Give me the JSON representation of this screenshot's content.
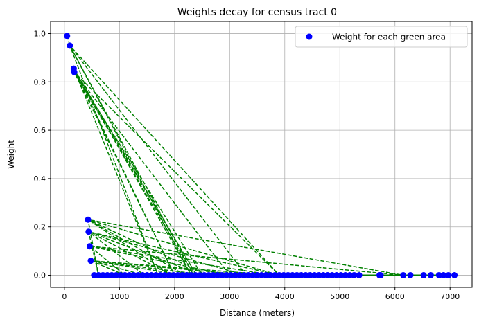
{
  "chart_data": {
    "type": "scatter",
    "title": "Weights decay for census tract 0",
    "xlabel": "Distance (meters)",
    "ylabel": "Weight",
    "xlim": [
      -250,
      7400
    ],
    "ylim": [
      -0.05,
      1.05
    ],
    "xticks": [
      0,
      1000,
      2000,
      3000,
      4000,
      5000,
      6000,
      7000
    ],
    "yticks": [
      0.0,
      0.2,
      0.4,
      0.6,
      0.8,
      1.0
    ],
    "xtick_labels": [
      "0",
      "1000",
      "2000",
      "3000",
      "4000",
      "5000",
      "6000",
      "7000"
    ],
    "ytick_labels": [
      "0.0",
      "0.2",
      "0.4",
      "0.6",
      "0.8",
      "1.0"
    ],
    "grid": true,
    "legend": {
      "placement": "top-right",
      "entries": [
        "Weight for each green area"
      ]
    },
    "colors": {
      "points": "#0000ff",
      "line": "#008000",
      "grid": "#b0b0b0"
    },
    "series": [
      {
        "name": "Weight for each green area",
        "style": "scatter",
        "points": [
          [
            50,
            0.99
          ],
          [
            100,
            0.95
          ],
          [
            170,
            0.855
          ],
          [
            180,
            0.84
          ],
          [
            430,
            0.23
          ],
          [
            440,
            0.18
          ],
          [
            460,
            0.12
          ],
          [
            480,
            0.06
          ],
          [
            540,
            0.0
          ],
          [
            620,
            0.0
          ],
          [
            700,
            0.0
          ],
          [
            780,
            0.0
          ],
          [
            860,
            0.0
          ],
          [
            940,
            0.0
          ],
          [
            1020,
            0.0
          ],
          [
            1100,
            0.0
          ],
          [
            1180,
            0.0
          ],
          [
            1260,
            0.0
          ],
          [
            1340,
            0.0
          ],
          [
            1420,
            0.0
          ],
          [
            1500,
            0.0
          ],
          [
            1580,
            0.0
          ],
          [
            1660,
            0.0
          ],
          [
            1740,
            0.0
          ],
          [
            1820,
            0.0
          ],
          [
            1900,
            0.0
          ],
          [
            1980,
            0.0
          ],
          [
            2060,
            0.0
          ],
          [
            2140,
            0.0
          ],
          [
            2220,
            0.0
          ],
          [
            2300,
            0.0
          ],
          [
            2380,
            0.0
          ],
          [
            2460,
            0.0
          ],
          [
            2540,
            0.0
          ],
          [
            2620,
            0.0
          ],
          [
            2700,
            0.0
          ],
          [
            2780,
            0.0
          ],
          [
            2860,
            0.0
          ],
          [
            2940,
            0.0
          ],
          [
            3020,
            0.0
          ],
          [
            3100,
            0.0
          ],
          [
            3180,
            0.0
          ],
          [
            3260,
            0.0
          ],
          [
            3340,
            0.0
          ],
          [
            3420,
            0.0
          ],
          [
            3500,
            0.0
          ],
          [
            3580,
            0.0
          ],
          [
            3660,
            0.0
          ],
          [
            3740,
            0.0
          ],
          [
            3820,
            0.0
          ],
          [
            3900,
            0.0
          ],
          [
            3980,
            0.0
          ],
          [
            4060,
            0.0
          ],
          [
            4140,
            0.0
          ],
          [
            4220,
            0.0
          ],
          [
            4300,
            0.0
          ],
          [
            4380,
            0.0
          ],
          [
            4460,
            0.0
          ],
          [
            4540,
            0.0
          ],
          [
            4620,
            0.0
          ],
          [
            4700,
            0.0
          ],
          [
            4780,
            0.0
          ],
          [
            4860,
            0.0
          ],
          [
            4940,
            0.0
          ],
          [
            5020,
            0.0
          ],
          [
            5100,
            0.0
          ],
          [
            5180,
            0.0
          ],
          [
            5260,
            0.0
          ],
          [
            5350,
            0.0
          ],
          [
            5720,
            0.0
          ],
          [
            5740,
            0.0
          ],
          [
            6150,
            0.0
          ],
          [
            6280,
            0.0
          ],
          [
            6520,
            0.0
          ],
          [
            6650,
            0.0
          ],
          [
            6800,
            0.0
          ],
          [
            6880,
            0.0
          ],
          [
            6970,
            0.0
          ],
          [
            7080,
            0.0
          ]
        ]
      },
      {
        "style": "dashed-line",
        "points": [
          [
            50,
            0.99
          ],
          [
            100,
            0.95
          ],
          [
            2300,
            0.0
          ],
          [
            170,
            0.855
          ],
          [
            2400,
            0.0
          ],
          [
            180,
            0.84
          ],
          [
            2350,
            0.0
          ],
          [
            100,
            0.95
          ],
          [
            3900,
            0.0
          ],
          [
            180,
            0.84
          ],
          [
            2000,
            0.0
          ],
          [
            170,
            0.855
          ],
          [
            1700,
            0.0
          ],
          [
            100,
            0.95
          ],
          [
            3300,
            0.0
          ],
          [
            440,
            0.18
          ],
          [
            620,
            0.0
          ],
          [
            430,
            0.23
          ],
          [
            6150,
            0.0
          ],
          [
            460,
            0.12
          ],
          [
            3800,
            0.0
          ],
          [
            480,
            0.06
          ],
          [
            2600,
            0.0
          ],
          [
            430,
            0.23
          ],
          [
            1950,
            0.0
          ],
          [
            440,
            0.18
          ],
          [
            2500,
            0.0
          ],
          [
            180,
            0.84
          ],
          [
            3000,
            0.0
          ],
          [
            460,
            0.12
          ],
          [
            1100,
            0.0
          ],
          [
            480,
            0.06
          ],
          [
            2200,
            0.0
          ],
          [
            430,
            0.23
          ],
          [
            3900,
            0.0
          ],
          [
            440,
            0.18
          ],
          [
            1450,
            0.0
          ],
          [
            480,
            0.06
          ],
          [
            3350,
            0.0
          ]
        ]
      },
      {
        "style": "solid-line",
        "points": [
          [
            540,
            0.0
          ],
          [
            7080,
            0.0
          ]
        ]
      }
    ]
  }
}
